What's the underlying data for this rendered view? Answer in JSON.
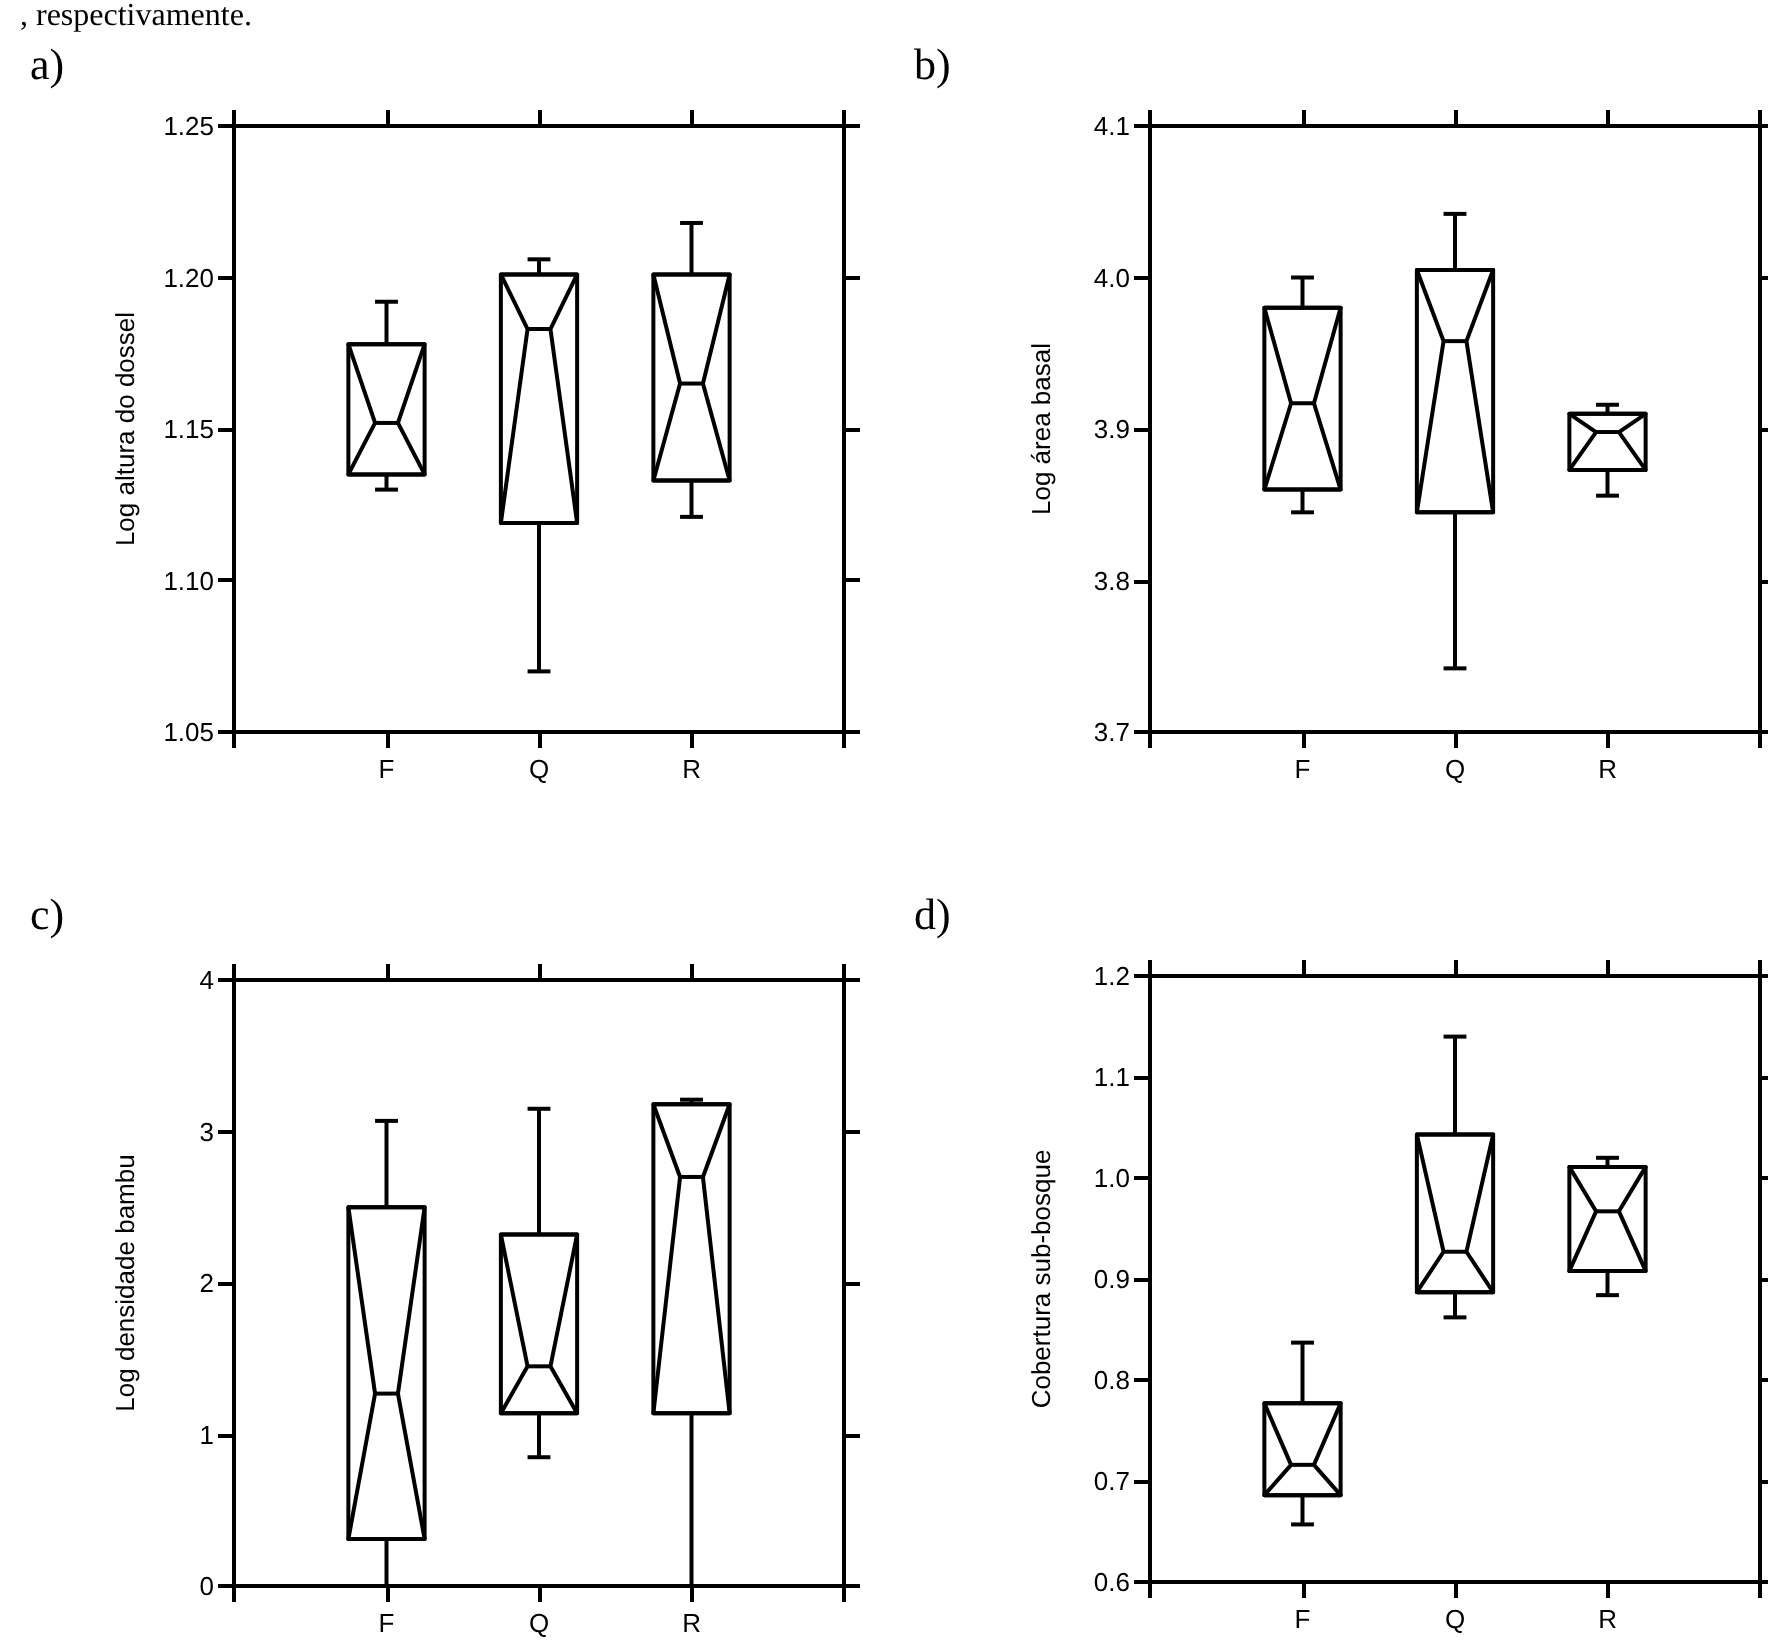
{
  "chart_data": [
    {
      "type": "box",
      "title": "a)",
      "ylabel": "Log altura do dossel",
      "categories": [
        "F",
        "Q",
        "R"
      ],
      "ylim": [
        1.05,
        1.25
      ],
      "yticks": [
        1.05,
        {
          "value": 1.1,
          "label": "1.10"
        },
        1.15,
        {
          "value": 1.2,
          "label": "1.20"
        },
        1.25
      ],
      "grid": false,
      "annotations": [
        ", respectivamente."
      ],
      "boxes": [
        {
          "low": 1.13,
          "q1": 1.135,
          "median": 1.152,
          "q3": 1.178,
          "high": 1.192
        },
        {
          "low": 1.07,
          "q1": 1.119,
          "median": 1.183,
          "q3": 1.201,
          "high": 1.206
        },
        {
          "low": 1.121,
          "q1": 1.133,
          "median": 1.165,
          "q3": 1.201,
          "high": 1.218
        }
      ]
    },
    {
      "type": "box",
      "title": "b)",
      "ylabel": "Log área basal",
      "categories": [
        "F",
        "Q",
        "R"
      ],
      "ylim": [
        3.7,
        4.1
      ],
      "yticks": [
        3.7,
        3.8,
        3.9,
        {
          "value": 4,
          "label": "4.0"
        },
        4.1
      ],
      "grid": false,
      "boxes": [
        {
          "low": 3.845,
          "q1": 3.86,
          "median": 3.917,
          "q3": 3.98,
          "high": 4.0
        },
        {
          "low": 3.742,
          "q1": 3.845,
          "median": 3.958,
          "q3": 4.005,
          "high": 4.042
        },
        {
          "low": 3.856,
          "q1": 3.873,
          "median": 3.898,
          "q3": 3.91,
          "high": 3.916
        }
      ]
    },
    {
      "type": "box",
      "title": "c)",
      "ylabel": "Log densidade bambu",
      "categories": [
        "F",
        "Q",
        "R"
      ],
      "ylim": [
        0,
        4
      ],
      "yticks": [
        0,
        1,
        2,
        3,
        4
      ],
      "grid": false,
      "boxes": [
        {
          "low": 0,
          "q1": 0.31,
          "median": 1.27,
          "q3": 2.5,
          "high": 3.07
        },
        {
          "low": 0.85,
          "q1": 1.14,
          "median": 1.45,
          "q3": 2.32,
          "high": 3.15
        },
        {
          "low": 0,
          "q1": 1.14,
          "median": 2.7,
          "q3": 3.18,
          "high": 3.21
        }
      ]
    },
    {
      "type": "box",
      "title": "d)",
      "ylabel": "Cobertura sub-bosque",
      "categories": [
        "F",
        "Q",
        "R"
      ],
      "ylim": [
        0.6,
        1.2
      ],
      "yticks": [
        0.6,
        0.7,
        0.8,
        0.9,
        {
          "value": 1,
          "label": "1.0"
        },
        1.1,
        1.2
      ],
      "grid": false,
      "boxes": [
        {
          "low": 0.657,
          "q1": 0.686,
          "median": 0.716,
          "q3": 0.777,
          "high": 0.837
        },
        {
          "low": 0.862,
          "q1": 0.887,
          "median": 0.927,
          "q3": 1.043,
          "high": 1.14
        },
        {
          "low": 0.884,
          "q1": 0.908,
          "median": 0.967,
          "q3": 1.011,
          "high": 1.02
        }
      ]
    }
  ]
}
